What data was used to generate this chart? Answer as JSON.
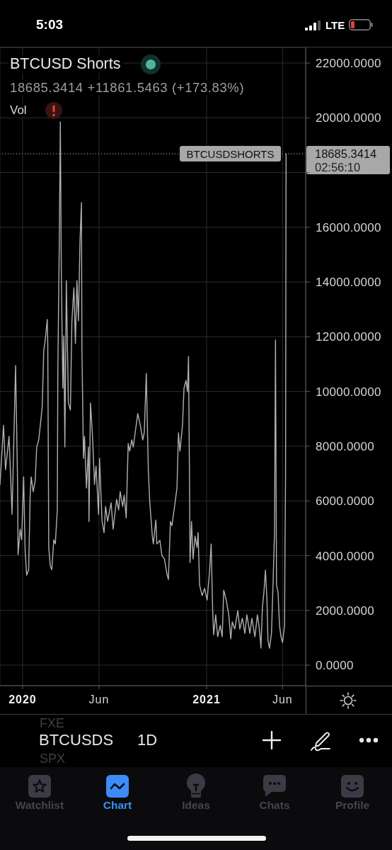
{
  "chart_data": {
    "type": "line",
    "title": "BTCUSD Shorts",
    "subtitle": "18685.3414 +11861.5463 (+173.83%)",
    "annotations": [
      "5:03",
      "LTE",
      "Vol",
      "18685.3414",
      "02:56:10",
      "FXE",
      "BTCUSDS",
      "SPX",
      "1D",
      "Watchlist",
      "Chart",
      "Ideas",
      "Chats",
      "Profile"
    ],
    "x": [
      "2019-11-17",
      "2019-11-24",
      "2019-11-28",
      "2019-12-05",
      "2019-12-11",
      "2019-12-18",
      "2019-12-22",
      "2019-12-23",
      "2019-12-27",
      "2019-12-30",
      "2020-01-03",
      "2020-01-06",
      "2020-01-09",
      "2020-01-13",
      "2020-01-16",
      "2020-01-18",
      "2020-01-22",
      "2020-01-26",
      "2020-01-29",
      "2020-02-02",
      "2020-02-06",
      "2020-02-09",
      "2020-02-12",
      "2020-02-15",
      "2020-02-19",
      "2020-02-20",
      "2020-02-22",
      "2020-02-25",
      "2020-02-28",
      "2020-03-03",
      "2020-03-06",
      "2020-03-10",
      "2020-03-11",
      "2020-03-14",
      "2020-03-16",
      "2020-03-18",
      "2020-03-21",
      "2020-03-23",
      "2020-03-25",
      "2020-03-28",
      "2020-04-01",
      "2020-04-05",
      "2020-04-08",
      "2020-04-12",
      "2020-04-15",
      "2020-04-18",
      "2020-04-21",
      "2020-04-24",
      "2020-04-27",
      "2020-04-28",
      "2020-05-01",
      "2020-05-03",
      "2020-05-07",
      "2020-05-11",
      "2020-05-12",
      "2020-05-15",
      "2020-05-19",
      "2020-05-23",
      "2020-05-26",
      "2020-05-31",
      "2020-06-02",
      "2020-06-07",
      "2020-06-11",
      "2020-06-14",
      "2020-06-18",
      "2020-06-25",
      "2020-06-29",
      "2020-07-06",
      "2020-07-10",
      "2020-07-13",
      "2020-07-18",
      "2020-07-21",
      "2020-07-25",
      "2020-07-29",
      "2020-08-01",
      "2020-08-05",
      "2020-08-08",
      "2020-08-12",
      "2020-08-17",
      "2020-08-22",
      "2020-08-27",
      "2020-08-30",
      "2020-09-03",
      "2020-09-07",
      "2020-09-10",
      "2020-09-15",
      "2020-09-17",
      "2020-09-22",
      "2020-09-24",
      "2020-09-30",
      "2020-10-04",
      "2020-10-09",
      "2020-10-14",
      "2020-10-17",
      "2020-10-21",
      "2020-10-24",
      "2020-10-28",
      "2020-11-03",
      "2020-11-06",
      "2020-11-09",
      "2020-11-14",
      "2020-11-17",
      "2020-11-21",
      "2020-11-24",
      "2020-11-26",
      "2020-11-28",
      "2020-11-29",
      "2020-12-02",
      "2020-12-05",
      "2020-12-09",
      "2020-12-13",
      "2020-12-15",
      "2020-12-18",
      "2020-12-23",
      "2020-12-28",
      "2021-01-02",
      "2021-01-07",
      "2021-01-10",
      "2021-01-13",
      "2021-01-15",
      "2021-01-19",
      "2021-01-23",
      "2021-01-28",
      "2021-02-01",
      "2021-02-04",
      "2021-02-09",
      "2021-02-14",
      "2021-02-18",
      "2021-02-21",
      "2021-02-26",
      "2021-03-04",
      "2021-03-08",
      "2021-03-13",
      "2021-03-18",
      "2021-03-22",
      "2021-03-28",
      "2021-04-01",
      "2021-04-07",
      "2021-04-12",
      "2021-04-15",
      "2021-04-18",
      "2021-04-19",
      "2021-04-22",
      "2021-04-25",
      "2021-04-28",
      "2021-05-01",
      "2021-05-03",
      "2021-05-06",
      "2021-05-10",
      "2021-05-13",
      "2021-05-16",
      "2021-05-18",
      "2021-05-20",
      "2021-05-23",
      "2021-05-26",
      "2021-05-29",
      "2021-06-01",
      "2021-06-03",
      "2021-06-05",
      "2021-06-06",
      "2021-06-07",
      "2021-06-08"
    ],
    "values": [
      6600,
      8770,
      7140,
      8360,
      5510,
      10950,
      6600,
      4040,
      4970,
      4580,
      6880,
      4170,
      3290,
      3490,
      6190,
      6880,
      6340,
      6730,
      7970,
      8230,
      8900,
      9450,
      11490,
      11880,
      12630,
      11750,
      4300,
      3620,
      3490,
      4580,
      4430,
      5670,
      10660,
      15550,
      19850,
      14340,
      10120,
      12030,
      7970,
      14050,
      9580,
      9320,
      12580,
      13790,
      11750,
      14050,
      12580,
      15420,
      16900,
      11490,
      7560,
      8360,
      6470,
      7970,
      5250,
      9580,
      8360,
      6600,
      7270,
      5510,
      7560,
      5250,
      4840,
      5800,
      5250,
      5930,
      4970,
      6060,
      5670,
      6340,
      5800,
      6210,
      5380,
      8100,
      7820,
      8230,
      7970,
      8510,
      9190,
      8770,
      8230,
      8510,
      10660,
      7140,
      5930,
      4710,
      4430,
      5300,
      4430,
      4560,
      4010,
      3880,
      3340,
      3130,
      5250,
      5100,
      5640,
      6470,
      8490,
      7820,
      8770,
      10120,
      10400,
      9990,
      11280,
      6600,
      3750,
      5250,
      3880,
      4710,
      4300,
      4840,
      2920,
      2540,
      2800,
      2380,
      3470,
      4430,
      1990,
      1110,
      1840,
      1040,
      1450,
      1040,
      2740,
      2380,
      1840,
      960,
      1580,
      1320,
      1990,
      1320,
      1710,
      1160,
      1840,
      1160,
      1710,
      1040,
      1840,
      1450,
      910,
      620,
      2120,
      2670,
      3470,
      2380,
      910,
      620,
      1160,
      2920,
      4840,
      11880,
      2920,
      2670,
      1450,
      1040,
      830,
      1160,
      1450,
      4660,
      6820,
      18685.3414
    ],
    "color": "#b0b0b0",
    "xlim": [
      "2019-11-17",
      "2021-07-17"
    ],
    "xticks": [
      {
        "value": "2020-01-01",
        "label": "2020"
      },
      {
        "value": "2020-06-01",
        "label": "Jun"
      },
      {
        "value": "2021-01-01",
        "label": "2021"
      },
      {
        "value": "2021-06-01",
        "label": "Jun"
      }
    ],
    "ylim": [
      -750,
      22570
    ],
    "yticks": [
      {
        "value": 0,
        "label": "0.0000"
      },
      {
        "value": 2000,
        "label": "2000.0000"
      },
      {
        "value": 4000,
        "label": "4000.0000"
      },
      {
        "value": 6000,
        "label": "6000.0000"
      },
      {
        "value": 8000,
        "label": "8000.0000"
      },
      {
        "value": 10000,
        "label": "10000.0000"
      },
      {
        "value": 12000,
        "label": "12000.0000"
      },
      {
        "value": 14000,
        "label": "14000.0000"
      },
      {
        "value": 16000,
        "label": "16000.0000"
      },
      {
        "value": 18000,
        "label": null
      },
      {
        "value": 20000,
        "label": "20000.0000"
      },
      {
        "value": 22000,
        "label": "22000.0000"
      }
    ],
    "grid": true,
    "ref_lines": [
      {
        "axis": "y",
        "value": 18685.3414,
        "label": "BTCUSDSHORTS",
        "line_style": "dotted",
        "color": "#a8a8a8"
      }
    ]
  }
}
